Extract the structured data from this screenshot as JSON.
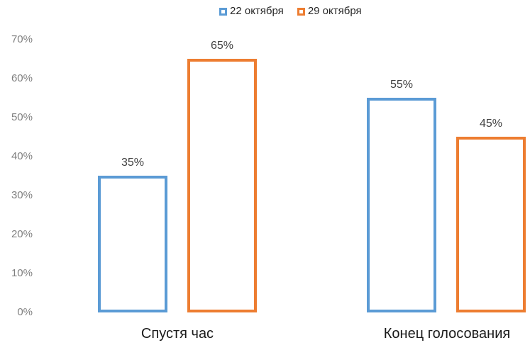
{
  "chart_data": {
    "type": "bar",
    "categories": [
      "Спустя час",
      "Конец голосования"
    ],
    "series": [
      {
        "name": "22 октября",
        "color": "#5B9BD5",
        "values": [
          35,
          55
        ]
      },
      {
        "name": "29 октября",
        "color": "#ED7D31",
        "values": [
          65,
          45
        ]
      }
    ],
    "value_suffix": "%",
    "ylim": [
      0,
      70
    ],
    "yticks": [
      "0%",
      "10%",
      "20%",
      "30%",
      "40%",
      "50%",
      "60%",
      "70%"
    ],
    "grid": false,
    "legend_position": "top",
    "bar_style": "outline-only-white-fill",
    "colors": {
      "series_blue": "#5B9BD5",
      "series_orange": "#ED7D31",
      "axis_labels": "#7F7F7F",
      "data_labels": "#404040",
      "category_labels": "#1A1A1A",
      "background": "#FFFFFF"
    }
  }
}
